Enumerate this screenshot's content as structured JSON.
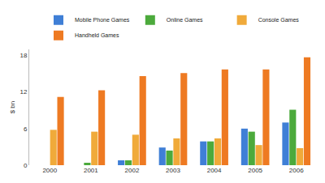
{
  "chart_data": {
    "type": "bar",
    "y_label": "$ bn",
    "categories": [
      "2000",
      "2001",
      "2002",
      "2003",
      "2004",
      "2005",
      "2006"
    ],
    "series": [
      {
        "name": "Mobile Phone Games",
        "color": "#3f7fd6",
        "values": [
          0,
          0,
          0.8,
          2.9,
          3.9,
          6.0,
          7.0
        ]
      },
      {
        "name": "Online Games",
        "color": "#4caa3c",
        "values": [
          0,
          0.4,
          0.8,
          2.4,
          3.9,
          5.5,
          9.1
        ]
      },
      {
        "name": "Console Games",
        "color": "#f0aa3a",
        "values": [
          5.8,
          5.5,
          5.0,
          4.4,
          4.4,
          3.3,
          2.8
        ]
      },
      {
        "name": "Handheld Games",
        "color": "#ee7a22",
        "values": [
          11.2,
          12.3,
          14.6,
          15.1,
          15.7,
          15.7,
          17.7
        ]
      }
    ],
    "ylim": [
      0,
      19
    ],
    "yticks": [
      0,
      6,
      12,
      18
    ],
    "grid": false,
    "legend": "top"
  }
}
